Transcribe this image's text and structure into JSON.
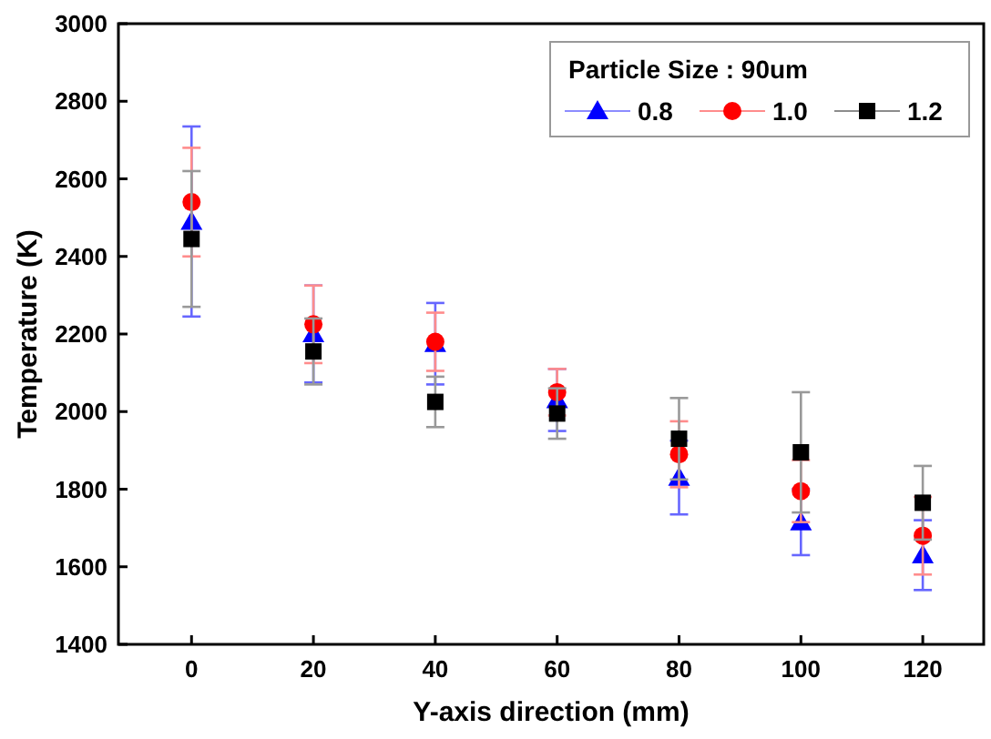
{
  "chart_data": {
    "type": "scatter",
    "xlabel": "Y-axis direction (mm)",
    "ylabel": "Temperature (K)",
    "legend_title": "Particle Size : 90um",
    "legend": "top right",
    "grid": false,
    "x": [
      0,
      20,
      40,
      60,
      80,
      100,
      120
    ],
    "xlim": [
      -12,
      130
    ],
    "xticks": [
      0,
      20,
      40,
      60,
      80,
      100,
      120
    ],
    "ylim": [
      1400,
      3000
    ],
    "yticks": [
      1400,
      1600,
      1800,
      2000,
      2200,
      2400,
      2600,
      2800,
      3000
    ],
    "series": [
      {
        "name": "0.8",
        "color": "#0000ff",
        "marker": "triangle",
        "values": [
          2490,
          2200,
          2175,
          2030,
          1830,
          1715,
          1630
        ],
        "errors": [
          245,
          125,
          105,
          80,
          95,
          85,
          90
        ]
      },
      {
        "name": "1.0",
        "color": "#ff0000",
        "marker": "circle",
        "values": [
          2540,
          2225,
          2180,
          2050,
          1890,
          1795,
          1680
        ],
        "errors": [
          140,
          100,
          75,
          60,
          85,
          80,
          100
        ]
      },
      {
        "name": "1.2",
        "color": "#000000",
        "marker": "square",
        "values": [
          2445,
          2155,
          2025,
          1995,
          1930,
          1895,
          1765
        ],
        "errors": [
          175,
          85,
          65,
          65,
          105,
          155,
          95
        ]
      }
    ]
  }
}
